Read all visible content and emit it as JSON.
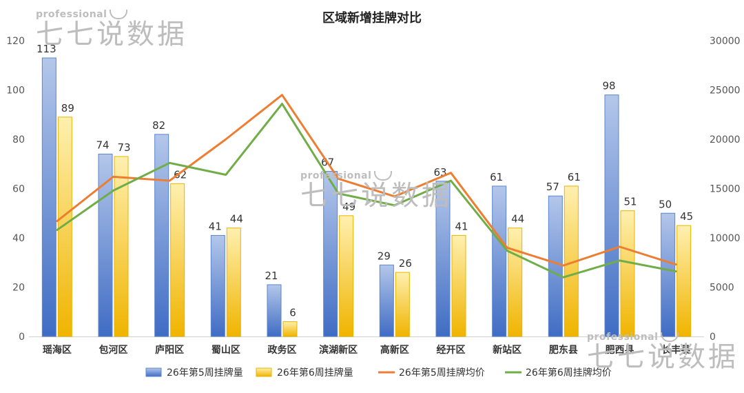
{
  "chart_data": {
    "type": "bar",
    "title": "区域新增挂牌对比",
    "categories": [
      "瑶海区",
      "包河区",
      "庐阳区",
      "蜀山区",
      "政务区",
      "滨湖新区",
      "高新区",
      "经开区",
      "新站区",
      "肥东县",
      "肥西县",
      "长丰县"
    ],
    "series": [
      {
        "name": "26年第5周挂牌量",
        "kind": "bar",
        "axis": "left",
        "color": "#4472C4",
        "values": [
          113,
          74,
          82,
          41,
          21,
          67,
          29,
          63,
          61,
          57,
          98,
          50
        ]
      },
      {
        "name": "26年第6周挂牌量",
        "kind": "bar",
        "axis": "left",
        "color": "#FFC000",
        "values": [
          89,
          73,
          62,
          44,
          6,
          49,
          26,
          41,
          44,
          61,
          51,
          45
        ]
      },
      {
        "name": "26年第5周挂牌均价",
        "kind": "line",
        "axis": "right",
        "color": "#ED7D31",
        "values": [
          11700,
          16200,
          15800,
          20000,
          24500,
          16000,
          14200,
          16600,
          9000,
          7200,
          9100,
          7300
        ]
      },
      {
        "name": "26年第6周挂牌均价",
        "kind": "line",
        "axis": "right",
        "color": "#70AD47",
        "values": [
          10800,
          14800,
          17600,
          16400,
          23600,
          14500,
          13300,
          15800,
          8700,
          6000,
          7700,
          6600
        ]
      }
    ],
    "y_left": {
      "min": 0,
      "max": 120,
      "ticks": [
        0,
        20,
        40,
        60,
        80,
        100,
        120
      ]
    },
    "y_right": {
      "min": 0,
      "max": 30000,
      "ticks": [
        0,
        5000,
        10000,
        15000,
        20000,
        25000,
        30000
      ]
    },
    "grid": false,
    "legend_position": "bottom"
  },
  "watermark": {
    "top_text": "professional",
    "main_text": "七七说数据"
  }
}
